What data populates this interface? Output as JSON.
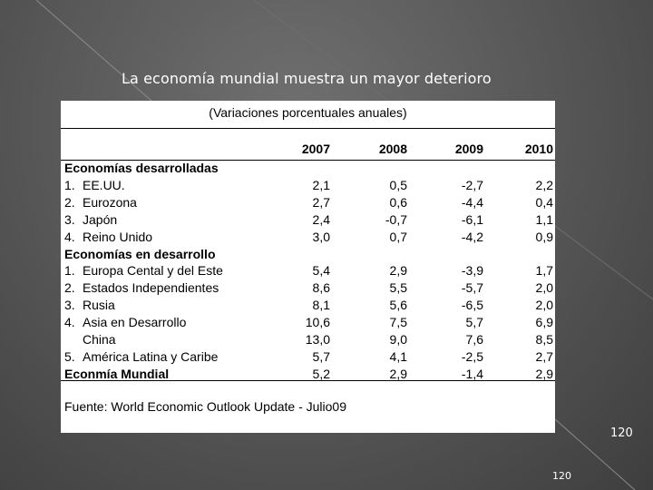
{
  "slide": {
    "title": "La economía mundial muestra un mayor deterioro",
    "page_number_large": "120",
    "page_number_small": "120"
  },
  "table": {
    "subtitle": "(Variaciones porcentuales anuales)",
    "years": [
      "2007",
      "2008",
      "2009",
      "2010"
    ],
    "rows": [
      {
        "type": "header",
        "label": "Economías desarrolladas",
        "num": "",
        "values": []
      },
      {
        "type": "item",
        "num": "1.",
        "label": "EE.UU.",
        "values": [
          "2,1",
          "0,5",
          "-2,7",
          "2,2"
        ]
      },
      {
        "type": "item",
        "num": "2.",
        "label": "Eurozona",
        "values": [
          "2,7",
          "0,6",
          "-4,4",
          "0,4"
        ]
      },
      {
        "type": "item",
        "num": "3.",
        "label": "Japón",
        "values": [
          "2,4",
          "-0,7",
          "-6,1",
          "1,1"
        ]
      },
      {
        "type": "item",
        "num": "4.",
        "label": "Reino Unido",
        "values": [
          "3,0",
          "0,7",
          "-4,2",
          "0,9"
        ]
      },
      {
        "type": "header",
        "label": "Economías en desarrollo",
        "num": "",
        "values": []
      },
      {
        "type": "item",
        "num": "1.",
        "label": "Europa Cental y del Este",
        "values": [
          "5,4",
          "2,9",
          "-3,9",
          "1,7"
        ]
      },
      {
        "type": "item",
        "num": "2.",
        "label": "Estados Independientes",
        "values": [
          "8,6",
          "5,5",
          "-5,7",
          "2,0"
        ]
      },
      {
        "type": "item",
        "num": "3.",
        "label": "Rusia",
        "values": [
          "8,1",
          "5,6",
          "-6,5",
          "2,0"
        ]
      },
      {
        "type": "item",
        "num": "4.",
        "label": "Asia en Desarrollo",
        "values": [
          "10,6",
          "7,5",
          "5,7",
          "6,9"
        ]
      },
      {
        "type": "item",
        "num": "",
        "label": "China",
        "values": [
          "13,0",
          "9,0",
          "7,6",
          "8,5"
        ]
      },
      {
        "type": "item",
        "num": "5.",
        "label": "América Latina y Caribe",
        "values": [
          "5,7",
          "4,1",
          "-2,5",
          "2,7"
        ]
      },
      {
        "type": "total",
        "num": "",
        "label": "Econmía Mundial",
        "values": [
          "5,2",
          "2,9",
          "-1,4",
          "2,9"
        ]
      }
    ],
    "source": "Fuente: World Economic Outlook Update - Julio09"
  }
}
